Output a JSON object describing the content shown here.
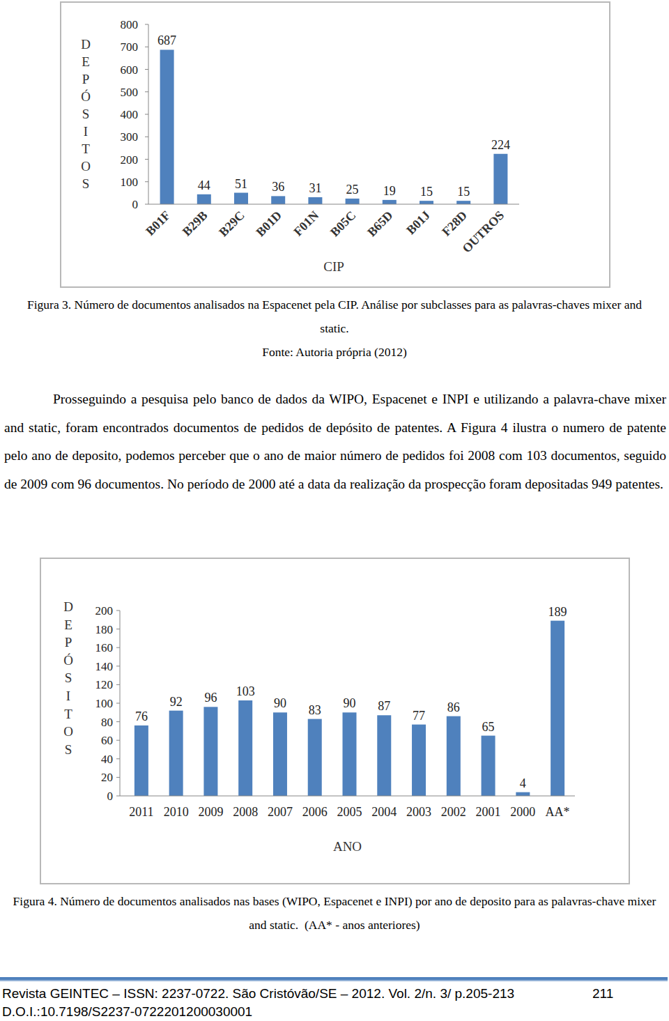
{
  "chart_data": [
    {
      "type": "bar",
      "x_label": "CIP",
      "y_label": "DEPÓSITOS",
      "categories": [
        "B01F",
        "B29B",
        "B29C",
        "B01D",
        "F01N",
        "B05C",
        "B65D",
        "B01J",
        "F28D",
        "OUTROS"
      ],
      "values": [
        687,
        44,
        51,
        36,
        31,
        25,
        19,
        15,
        15,
        224
      ],
      "color": "#4f81bd",
      "ylim": [
        0,
        800
      ],
      "yticks": [
        0,
        100,
        200,
        300,
        400,
        500,
        600,
        700,
        800
      ],
      "grid": false,
      "data_labels": true
    },
    {
      "type": "bar",
      "x_label": "ANO",
      "y_label": "DEPÓSITOS",
      "categories": [
        "2011",
        "2010",
        "2009",
        "2008",
        "2007",
        "2006",
        "2005",
        "2004",
        "2003",
        "2002",
        "2001",
        "2000",
        "AA*"
      ],
      "values": [
        76,
        92,
        96,
        103,
        90,
        83,
        90,
        87,
        77,
        86,
        65,
        4,
        189
      ],
      "color": "#4f81bd",
      "ylim": [
        0,
        200
      ],
      "yticks": [
        0,
        20,
        40,
        60,
        80,
        100,
        120,
        140,
        160,
        180,
        200
      ],
      "grid": false,
      "data_labels": true
    }
  ],
  "figure_3": {
    "caption": "Figura 3. Número de documentos analisados na Espacenet pela CIP. Análise por subclasses para as palavras-chaves mixer and static.",
    "source": "Fonte: Autoria própria (2012)"
  },
  "body": {
    "paragraph": "Prosseguindo a pesquisa pelo banco de dados da WIPO, Espacenet e INPI e utilizando a palavra-chave mixer and static, foram encontrados documentos de pedidos de depósito de patentes. A Figura 4 ilustra o numero de patente pelo ano de deposito, podemos perceber que o ano de maior número de pedidos foi 2008 com 103 documentos, seguido de 2009 com 96 documentos. No período de 2000 até a data da realização da prospecção foram depositadas 949 patentes."
  },
  "figure_4": {
    "caption": "Figura 4. Número de documentos analisados nas bases (WIPO, Espacenet e INPI) por ano de deposito para as palavras-chave mixer and static.  (AA* - anos anteriores)"
  },
  "footer": {
    "journal": "Revista GEINTEC – ISSN: 2237-0722. São Cristóvão/SE – 2012. Vol. 2/n. 3/ p.205-213",
    "page": "211",
    "doi": "D.O.I.:10.7198/S2237-0722201200030001"
  }
}
